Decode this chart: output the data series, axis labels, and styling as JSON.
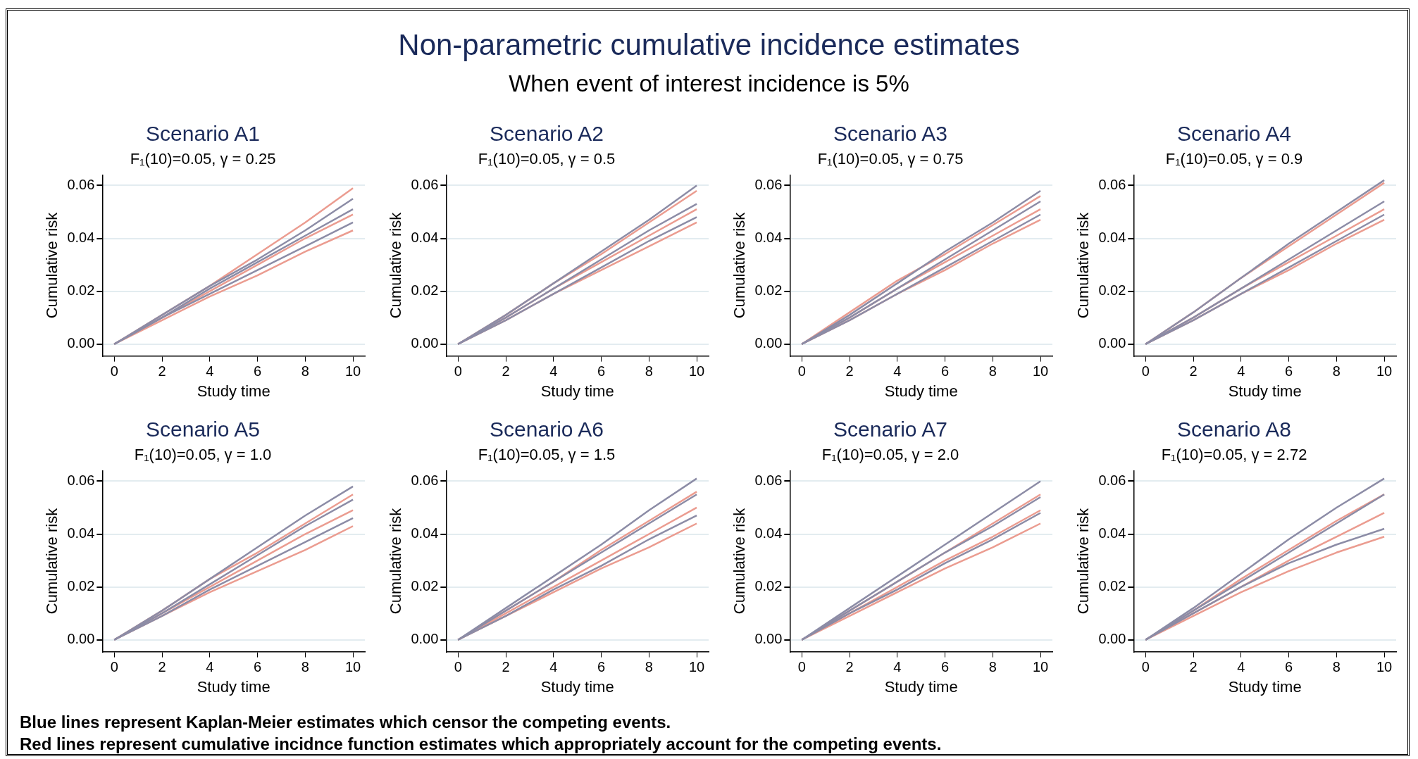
{
  "chart_data": [
    {
      "type": "other",
      "title": "Non-parametric cumulative incidence estimates",
      "subtitle": "When event of interest incidence is 5%",
      "annotations": [
        "Blue lines represent Kaplan-Meier estimates which censor the competing events.",
        "Red lines represent cumulative incidnce function estimates which appropriately account for the competing events."
      ]
    },
    {
      "type": "line",
      "title": "Scenario A1",
      "subtitle": "F₁(10)=0.05, γ = 0.25",
      "xlabel": "Study time",
      "ylabel": "Cumulative risk",
      "x": [
        0,
        2,
        4,
        6,
        8,
        10
      ],
      "xlim": [
        -0.5,
        10.5
      ],
      "xticks": [
        0,
        2,
        4,
        6,
        8,
        10
      ],
      "ylim": [
        -0.0045,
        0.064
      ],
      "yticks": [
        {
          "value": 0,
          "label": "0.00"
        },
        {
          "value": 0.02,
          "label": "0.02"
        },
        {
          "value": 0.04,
          "label": "0.04"
        },
        {
          "value": 0.06,
          "label": "0.06"
        }
      ],
      "grid": "y",
      "marker": "none",
      "series": [
        {
          "color": "#8c8ca6",
          "values": [
            0,
            0.01,
            0.021,
            0.031,
            0.041,
            0.051
          ]
        },
        {
          "color": "#8c8ca6",
          "values": [
            0,
            0.01,
            0.019,
            0.028,
            0.037,
            0.046
          ]
        },
        {
          "color": "#8c8ca6",
          "values": [
            0,
            0.011,
            0.022,
            0.032,
            0.043,
            0.055
          ]
        },
        {
          "color": "#eb9c90",
          "values": [
            0,
            0.009,
            0.018,
            0.026,
            0.035,
            0.043
          ]
        },
        {
          "color": "#eb9c90",
          "values": [
            0,
            0.01,
            0.02,
            0.03,
            0.04,
            0.049
          ]
        },
        {
          "color": "#eb9c90",
          "values": [
            0,
            0.011,
            0.022,
            0.034,
            0.046,
            0.059
          ]
        }
      ]
    },
    {
      "type": "line",
      "title": "Scenario A2",
      "subtitle": "F₁(10)=0.05, γ = 0.5",
      "xlabel": "Study time",
      "ylabel": "Cumulative risk",
      "x": [
        0,
        2,
        4,
        6,
        8,
        10
      ],
      "xlim": [
        -0.5,
        10.5
      ],
      "xticks": [
        0,
        2,
        4,
        6,
        8,
        10
      ],
      "ylim": [
        -0.0045,
        0.064
      ],
      "yticks": [
        {
          "value": 0,
          "label": "0.00"
        },
        {
          "value": 0.02,
          "label": "0.02"
        },
        {
          "value": 0.04,
          "label": "0.04"
        },
        {
          "value": 0.06,
          "label": "0.06"
        }
      ],
      "grid": "y",
      "marker": "none",
      "series": [
        {
          "color": "#8c8ca6",
          "values": [
            0,
            0.01,
            0.021,
            0.032,
            0.043,
            0.053
          ]
        },
        {
          "color": "#8c8ca6",
          "values": [
            0,
            0.009,
            0.019,
            0.029,
            0.039,
            0.048
          ]
        },
        {
          "color": "#8c8ca6",
          "values": [
            0,
            0.011,
            0.023,
            0.035,
            0.047,
            0.06
          ]
        },
        {
          "color": "#eb9c90",
          "values": [
            0,
            0.009,
            0.019,
            0.028,
            0.037,
            0.046
          ]
        },
        {
          "color": "#eb9c90",
          "values": [
            0,
            0.01,
            0.021,
            0.031,
            0.041,
            0.051
          ]
        },
        {
          "color": "#eb9c90",
          "values": [
            0,
            0.011,
            0.023,
            0.034,
            0.046,
            0.058
          ]
        }
      ]
    },
    {
      "type": "line",
      "title": "Scenario A3",
      "subtitle": "F₁(10)=0.05, γ = 0.75",
      "xlabel": "Study time",
      "ylabel": "Cumulative risk",
      "x": [
        0,
        2,
        4,
        6,
        8,
        10
      ],
      "xlim": [
        -0.5,
        10.5
      ],
      "xticks": [
        0,
        2,
        4,
        6,
        8,
        10
      ],
      "ylim": [
        -0.0045,
        0.064
      ],
      "yticks": [
        {
          "value": 0,
          "label": "0.00"
        },
        {
          "value": 0.02,
          "label": "0.02"
        },
        {
          "value": 0.04,
          "label": "0.04"
        },
        {
          "value": 0.06,
          "label": "0.06"
        }
      ],
      "grid": "y",
      "marker": "none",
      "series": [
        {
          "color": "#8c8ca6",
          "values": [
            0,
            0.01,
            0.021,
            0.032,
            0.043,
            0.054
          ]
        },
        {
          "color": "#8c8ca6",
          "values": [
            0,
            0.009,
            0.019,
            0.029,
            0.039,
            0.049
          ]
        },
        {
          "color": "#8c8ca6",
          "values": [
            0,
            0.011,
            0.023,
            0.035,
            0.046,
            0.058
          ]
        },
        {
          "color": "#eb9c90",
          "values": [
            0,
            0.009,
            0.019,
            0.028,
            0.038,
            0.047
          ]
        },
        {
          "color": "#eb9c90",
          "values": [
            0,
            0.01,
            0.021,
            0.031,
            0.041,
            0.051
          ]
        },
        {
          "color": "#eb9c90",
          "values": [
            0,
            0.012,
            0.024,
            0.034,
            0.045,
            0.056
          ]
        }
      ]
    },
    {
      "type": "line",
      "title": "Scenario A4",
      "subtitle": "F₁(10)=0.05, γ = 0.9",
      "xlabel": "Study time",
      "ylabel": "Cumulative risk",
      "x": [
        0,
        2,
        4,
        6,
        8,
        10
      ],
      "xlim": [
        -0.5,
        10.5
      ],
      "xticks": [
        0,
        2,
        4,
        6,
        8,
        10
      ],
      "ylim": [
        -0.0045,
        0.064
      ],
      "yticks": [
        {
          "value": 0,
          "label": "0.00"
        },
        {
          "value": 0.02,
          "label": "0.02"
        },
        {
          "value": 0.04,
          "label": "0.04"
        },
        {
          "value": 0.06,
          "label": "0.06"
        }
      ],
      "grid": "y",
      "marker": "none",
      "series": [
        {
          "color": "#8c8ca6",
          "values": [
            0,
            0.01,
            0.021,
            0.032,
            0.043,
            0.054
          ]
        },
        {
          "color": "#8c8ca6",
          "values": [
            0,
            0.009,
            0.019,
            0.029,
            0.039,
            0.049
          ]
        },
        {
          "color": "#8c8ca6",
          "values": [
            0,
            0.012,
            0.025,
            0.038,
            0.05,
            0.062
          ]
        },
        {
          "color": "#eb9c90",
          "values": [
            0,
            0.009,
            0.019,
            0.028,
            0.038,
            0.047
          ]
        },
        {
          "color": "#eb9c90",
          "values": [
            0,
            0.01,
            0.021,
            0.031,
            0.041,
            0.051
          ]
        },
        {
          "color": "#eb9c90",
          "values": [
            0,
            0.012,
            0.025,
            0.037,
            0.049,
            0.061
          ]
        }
      ]
    },
    {
      "type": "line",
      "title": "Scenario A5",
      "subtitle": "F₁(10)=0.05, γ = 1.0",
      "xlabel": "Study time",
      "ylabel": "Cumulative risk",
      "x": [
        0,
        2,
        4,
        6,
        8,
        10
      ],
      "xlim": [
        -0.5,
        10.5
      ],
      "xticks": [
        0,
        2,
        4,
        6,
        8,
        10
      ],
      "ylim": [
        -0.0045,
        0.064
      ],
      "yticks": [
        {
          "value": 0,
          "label": "0.00"
        },
        {
          "value": 0.02,
          "label": "0.02"
        },
        {
          "value": 0.04,
          "label": "0.04"
        },
        {
          "value": 0.06,
          "label": "0.06"
        }
      ],
      "grid": "y",
      "marker": "none",
      "series": [
        {
          "color": "#8c8ca6",
          "values": [
            0,
            0.01,
            0.021,
            0.032,
            0.043,
            0.053
          ]
        },
        {
          "color": "#8c8ca6",
          "values": [
            0,
            0.009,
            0.019,
            0.028,
            0.037,
            0.046
          ]
        },
        {
          "color": "#8c8ca6",
          "values": [
            0,
            0.011,
            0.023,
            0.035,
            0.047,
            0.058
          ]
        },
        {
          "color": "#eb9c90",
          "values": [
            0,
            0.009,
            0.018,
            0.026,
            0.034,
            0.043
          ]
        },
        {
          "color": "#eb9c90",
          "values": [
            0,
            0.01,
            0.02,
            0.03,
            0.04,
            0.049
          ]
        },
        {
          "color": "#eb9c90",
          "values": [
            0,
            0.011,
            0.023,
            0.033,
            0.044,
            0.055
          ]
        }
      ]
    },
    {
      "type": "line",
      "title": "Scenario A6",
      "subtitle": "F₁(10)=0.05, γ = 1.5",
      "xlabel": "Study time",
      "ylabel": "Cumulative risk",
      "x": [
        0,
        2,
        4,
        6,
        8,
        10
      ],
      "xlim": [
        -0.5,
        10.5
      ],
      "xticks": [
        0,
        2,
        4,
        6,
        8,
        10
      ],
      "ylim": [
        -0.0045,
        0.064
      ],
      "yticks": [
        {
          "value": 0,
          "label": "0.00"
        },
        {
          "value": 0.02,
          "label": "0.02"
        },
        {
          "value": 0.04,
          "label": "0.04"
        },
        {
          "value": 0.06,
          "label": "0.06"
        }
      ],
      "grid": "y",
      "marker": "none",
      "series": [
        {
          "color": "#8c8ca6",
          "values": [
            0,
            0.011,
            0.022,
            0.033,
            0.044,
            0.055
          ]
        },
        {
          "color": "#8c8ca6",
          "values": [
            0,
            0.009,
            0.019,
            0.028,
            0.038,
            0.047
          ]
        },
        {
          "color": "#8c8ca6",
          "values": [
            0,
            0.012,
            0.024,
            0.036,
            0.049,
            0.061
          ]
        },
        {
          "color": "#eb9c90",
          "values": [
            0,
            0.009,
            0.018,
            0.027,
            0.035,
            0.044
          ]
        },
        {
          "color": "#eb9c90",
          "values": [
            0,
            0.01,
            0.02,
            0.03,
            0.04,
            0.05
          ]
        },
        {
          "color": "#eb9c90",
          "values": [
            0,
            0.011,
            0.022,
            0.034,
            0.045,
            0.056
          ]
        }
      ]
    },
    {
      "type": "line",
      "title": "Scenario A7",
      "subtitle": "F₁(10)=0.05, γ = 2.0",
      "xlabel": "Study time",
      "ylabel": "Cumulative risk",
      "x": [
        0,
        2,
        4,
        6,
        8,
        10
      ],
      "xlim": [
        -0.5,
        10.5
      ],
      "xticks": [
        0,
        2,
        4,
        6,
        8,
        10
      ],
      "ylim": [
        -0.0045,
        0.064
      ],
      "yticks": [
        {
          "value": 0,
          "label": "0.00"
        },
        {
          "value": 0.02,
          "label": "0.02"
        },
        {
          "value": 0.04,
          "label": "0.04"
        },
        {
          "value": 0.06,
          "label": "0.06"
        }
      ],
      "grid": "y",
      "marker": "none",
      "series": [
        {
          "color": "#8c8ca6",
          "values": [
            0,
            0.011,
            0.022,
            0.033,
            0.043,
            0.054
          ]
        },
        {
          "color": "#8c8ca6",
          "values": [
            0,
            0.01,
            0.019,
            0.029,
            0.038,
            0.048
          ]
        },
        {
          "color": "#8c8ca6",
          "values": [
            0,
            0.012,
            0.024,
            0.036,
            0.048,
            0.06
          ]
        },
        {
          "color": "#eb9c90",
          "values": [
            0,
            0.009,
            0.018,
            0.027,
            0.035,
            0.044
          ]
        },
        {
          "color": "#eb9c90",
          "values": [
            0,
            0.01,
            0.02,
            0.03,
            0.039,
            0.049
          ]
        },
        {
          "color": "#eb9c90",
          "values": [
            0,
            0.011,
            0.022,
            0.033,
            0.044,
            0.055
          ]
        }
      ]
    },
    {
      "type": "line",
      "title": "Scenario A8",
      "subtitle": "F₁(10)=0.05, γ = 2.72",
      "xlabel": "Study time",
      "ylabel": "Cumulative risk",
      "x": [
        0,
        2,
        4,
        6,
        8,
        10
      ],
      "xlim": [
        -0.5,
        10.5
      ],
      "xticks": [
        0,
        2,
        4,
        6,
        8,
        10
      ],
      "ylim": [
        -0.0045,
        0.064
      ],
      "yticks": [
        {
          "value": 0,
          "label": "0.00"
        },
        {
          "value": 0.02,
          "label": "0.02"
        },
        {
          "value": 0.04,
          "label": "0.04"
        },
        {
          "value": 0.06,
          "label": "0.06"
        }
      ],
      "grid": "y",
      "marker": "none",
      "series": [
        {
          "color": "#8c8ca6",
          "values": [
            0,
            0.011,
            0.022,
            0.033,
            0.044,
            0.055
          ]
        },
        {
          "color": "#8c8ca6",
          "values": [
            0,
            0.01,
            0.02,
            0.029,
            0.036,
            0.042
          ]
        },
        {
          "color": "#8c8ca6",
          "values": [
            0,
            0.012,
            0.025,
            0.038,
            0.05,
            0.061
          ]
        },
        {
          "color": "#eb9c90",
          "values": [
            0,
            0.009,
            0.018,
            0.026,
            0.033,
            0.039
          ]
        },
        {
          "color": "#eb9c90",
          "values": [
            0,
            0.01,
            0.02,
            0.03,
            0.039,
            0.048
          ]
        },
        {
          "color": "#eb9c90",
          "values": [
            0,
            0.011,
            0.023,
            0.034,
            0.045,
            0.055
          ]
        }
      ]
    }
  ]
}
